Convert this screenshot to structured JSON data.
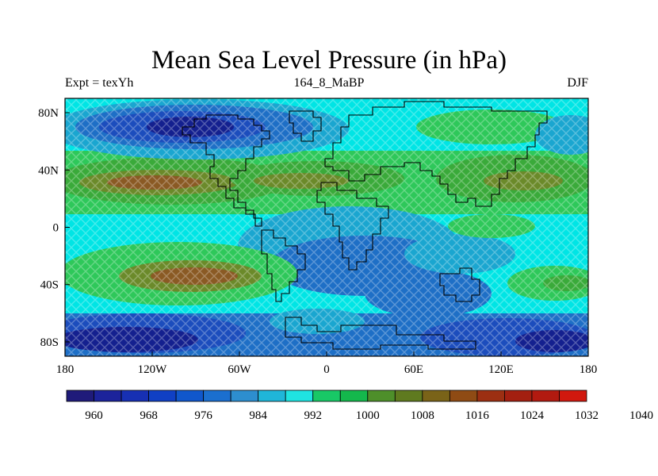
{
  "title": "Mean Sea Level Pressure (in hPa)",
  "left_label": "Expt = texYh",
  "center_label": "164_8_MaBP",
  "right_label": "DJF",
  "lon_ticks": [
    {
      "value": -180,
      "label": "180"
    },
    {
      "value": -120,
      "label": "120W"
    },
    {
      "value": -60,
      "label": "60W"
    },
    {
      "value": 0,
      "label": "0"
    },
    {
      "value": 60,
      "label": "60E"
    },
    {
      "value": 120,
      "label": "120E"
    },
    {
      "value": 180,
      "label": "180"
    }
  ],
  "lat_ticks": [
    {
      "value": 80,
      "label": "80N"
    },
    {
      "value": 40,
      "label": "40N"
    },
    {
      "value": 0,
      "label": "0"
    },
    {
      "value": -40,
      "label": "40S"
    },
    {
      "value": -80,
      "label": "80S"
    }
  ],
  "colorbar": {
    "colors": [
      "#1f1b7a",
      "#1c239b",
      "#1730b3",
      "#1040c4",
      "#1057cc",
      "#1b6fcf",
      "#2d8ecf",
      "#1fb6d9",
      "#1fe3e1",
      "#18c866",
      "#14b84c",
      "#4e8f2a",
      "#5f7a1f",
      "#7a6318",
      "#8f4b14",
      "#9c2f12",
      "#a31f10",
      "#b21a10",
      "#d1180e"
    ],
    "labels": [
      "960",
      "968",
      "976",
      "984",
      "992",
      "1000",
      "1008",
      "1016",
      "1024",
      "1032",
      "1040"
    ]
  },
  "field_colors": {
    "cyan": "#00e5e5",
    "teal": "#1aa6d0",
    "mid_blue": "#1e6fc6",
    "blue": "#1c4dbd",
    "dark_blue": "#14208f",
    "light_green": "#2ec85a",
    "green": "#3aaa3a",
    "olive": "#6b8a2a",
    "brown": "#8a5a24"
  }
}
